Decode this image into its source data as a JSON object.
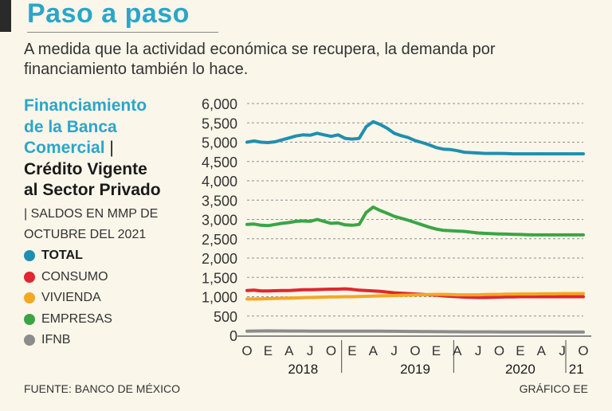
{
  "header": {
    "headline": "Paso a paso",
    "subtitle": "A medida que la actividad económica se recupera, la demanda por financiamiento también lo hace."
  },
  "panel": {
    "title_line1": "Financiamiento",
    "title_line2": "de la Banca",
    "title_line3": "Comercial",
    "title_separator": "|",
    "title_line4": "Crédito Vigente",
    "title_line5": "al Sector Privado",
    "units_line1": "| SALDOS EN MMP DE",
    "units_line2": "OCTUBRE DEL 2021"
  },
  "legend": [
    {
      "label": "TOTAL",
      "color": "#1f8fb0",
      "bold": true
    },
    {
      "label": "CONSUMO",
      "color": "#e02630",
      "bold": false
    },
    {
      "label": "VIVIENDA",
      "color": "#f5a623",
      "bold": false
    },
    {
      "label": "EMPRESAS",
      "color": "#3aa545",
      "bold": false
    },
    {
      "label": "IFNB",
      "color": "#8c8c8c",
      "bold": false
    }
  ],
  "footer": {
    "source": "FUENTE: BANCO DE MÉXICO",
    "credit": "GRÁFICO EE"
  },
  "chart_data": {
    "type": "line",
    "ylim": [
      0,
      6000
    ],
    "yticks": [
      "0",
      "500",
      "1,000",
      "1,500",
      "2,000",
      "2,500",
      "3,000",
      "3,500",
      "4,000",
      "4,500",
      "5,000",
      "5,500",
      "6,000"
    ],
    "ytick_values": [
      0,
      500,
      1000,
      1500,
      2000,
      2500,
      3000,
      3500,
      4000,
      4500,
      5000,
      5500,
      6000
    ],
    "x": [
      "2017-10",
      "2017-11",
      "2017-12",
      "2018-01",
      "2018-02",
      "2018-03",
      "2018-04",
      "2018-05",
      "2018-06",
      "2018-07",
      "2018-08",
      "2018-09",
      "2018-10",
      "2018-11",
      "2018-12",
      "2019-01",
      "2019-02",
      "2019-03",
      "2019-04",
      "2019-05",
      "2019-06",
      "2019-07",
      "2019-08",
      "2019-09",
      "2019-10",
      "2019-11",
      "2019-12",
      "2020-01",
      "2020-02",
      "2020-03",
      "2020-04",
      "2020-05",
      "2020-06",
      "2020-07",
      "2020-08",
      "2020-09",
      "2020-10",
      "2020-11",
      "2020-12",
      "2021-01",
      "2021-02",
      "2021-03",
      "2021-04",
      "2021-05",
      "2021-06",
      "2021-07",
      "2021-08",
      "2021-09",
      "2021-10"
    ],
    "month_ticks": [
      {
        "label": "O",
        "index": 0
      },
      {
        "label": "E",
        "index": 3
      },
      {
        "label": "A",
        "index": 6
      },
      {
        "label": "J",
        "index": 9
      },
      {
        "label": "O",
        "index": 12
      },
      {
        "label": "E",
        "index": 15
      },
      {
        "label": "A",
        "index": 18
      },
      {
        "label": "J",
        "index": 21
      },
      {
        "label": "O",
        "index": 24
      },
      {
        "label": "E",
        "index": 27
      },
      {
        "label": "A",
        "index": 30
      },
      {
        "label": "J",
        "index": 33
      },
      {
        "label": "O",
        "index": 36
      },
      {
        "label": "E",
        "index": 39
      },
      {
        "label": "A",
        "index": 42
      },
      {
        "label": "J",
        "index": 45
      },
      {
        "label": "O",
        "index": 48
      }
    ],
    "year_labels": [
      {
        "label": "2018",
        "from": 0,
        "to": 16
      },
      {
        "label": "2019",
        "from": 16,
        "to": 32
      },
      {
        "label": "2020",
        "from": 32,
        "to": 46
      },
      {
        "label": "21",
        "from": 46,
        "to": 48
      }
    ],
    "year_dividers": [
      13.5,
      29.5,
      45.5
    ],
    "series": [
      {
        "name": "TOTAL",
        "color": "#1f8fb0",
        "values": [
          5000,
          5030,
          5000,
          4990,
          5010,
          5060,
          5110,
          5160,
          5190,
          5180,
          5230,
          5190,
          5150,
          5190,
          5100,
          5080,
          5100,
          5400,
          5530,
          5460,
          5360,
          5230,
          5170,
          5120,
          5040,
          4990,
          4930,
          4860,
          4820,
          4810,
          4780,
          4740,
          4730,
          4720,
          4710,
          4710,
          4710,
          4705,
          4700,
          4700,
          4700,
          4700,
          4700,
          4700,
          4700,
          4700,
          4700,
          4700,
          4700
        ]
      },
      {
        "name": "CONSUMO",
        "color": "#e02630",
        "values": [
          1160,
          1170,
          1150,
          1150,
          1155,
          1160,
          1160,
          1170,
          1180,
          1180,
          1185,
          1190,
          1195,
          1195,
          1205,
          1190,
          1170,
          1160,
          1150,
          1140,
          1120,
          1100,
          1090,
          1080,
          1070,
          1060,
          1050,
          1040,
          1020,
          1010,
          1000,
          990,
          985,
          980,
          980,
          985,
          990,
          995,
          995,
          1000,
          1000,
          1000,
          1000,
          1000,
          1000,
          1000,
          1000,
          1000,
          1000
        ]
      },
      {
        "name": "VIVIENDA",
        "color": "#f5a623",
        "values": [
          940,
          940,
          945,
          950,
          955,
          960,
          965,
          970,
          975,
          980,
          985,
          990,
          995,
          995,
          1000,
          1000,
          1005,
          1010,
          1015,
          1020,
          1025,
          1030,
          1035,
          1040,
          1045,
          1050,
          1055,
          1060,
          1060,
          1055,
          1050,
          1050,
          1050,
          1050,
          1055,
          1060,
          1060,
          1065,
          1065,
          1070,
          1070,
          1070,
          1075,
          1075,
          1075,
          1080,
          1080,
          1080,
          1080
        ]
      },
      {
        "name": "EMPRESAS",
        "color": "#3aa545",
        "values": [
          2870,
          2880,
          2850,
          2840,
          2870,
          2900,
          2920,
          2950,
          2960,
          2950,
          3000,
          2950,
          2900,
          2910,
          2860,
          2850,
          2870,
          3180,
          3320,
          3230,
          3160,
          3080,
          3030,
          2980,
          2920,
          2860,
          2800,
          2750,
          2720,
          2710,
          2700,
          2690,
          2670,
          2650,
          2640,
          2630,
          2625,
          2620,
          2615,
          2610,
          2605,
          2600,
          2600,
          2600,
          2600,
          2600,
          2600,
          2600,
          2600
        ]
      },
      {
        "name": "IFNB",
        "color": "#8c8c8c",
        "values": [
          110,
          112,
          114,
          115,
          114,
          113,
          112,
          112,
          111,
          110,
          110,
          110,
          110,
          110,
          110,
          110,
          110,
          110,
          108,
          107,
          106,
          105,
          103,
          102,
          100,
          98,
          96,
          95,
          94,
          93,
          92,
          91,
          90,
          90,
          90,
          90,
          89,
          88,
          88,
          88,
          87,
          87,
          86,
          86,
          86,
          85,
          85,
          85,
          85
        ]
      }
    ]
  }
}
